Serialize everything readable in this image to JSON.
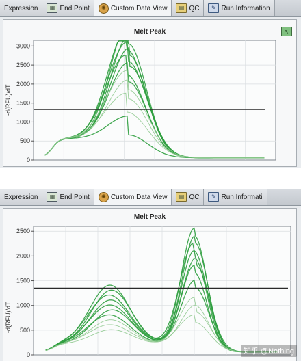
{
  "tabs_top": [
    {
      "label": "Expression",
      "icon": ""
    },
    {
      "label": "End Point",
      "icon": "endpoint-icon"
    },
    {
      "label": "Custom Data View",
      "icon": "gear-icon"
    },
    {
      "label": "QC",
      "icon": "qc-icon"
    },
    {
      "label": "Run Information",
      "icon": "run-info-icon"
    }
  ],
  "tabs_bottom": [
    {
      "label": "Expression",
      "icon": ""
    },
    {
      "label": "End Point",
      "icon": "endpoint-icon"
    },
    {
      "label": "Custom Data View",
      "icon": "gear-icon"
    },
    {
      "label": "QC",
      "icon": "qc-icon"
    },
    {
      "label": "Run Informati",
      "icon": "run-info-icon"
    }
  ],
  "watermark": "知乎 @Nothing",
  "colors": {
    "curve": "#2f9e3f",
    "curve_light": "#8fc98f",
    "threshold": "#2a2a2a"
  },
  "chart_data": [
    {
      "type": "line",
      "title": "Melt Peak",
      "ylabel": "-d(RFU)/dT",
      "yticks": [
        0,
        500,
        1000,
        1500,
        2000,
        2500,
        3000
      ],
      "ylim": [
        0,
        3150
      ],
      "xlim": [
        64,
        96
      ],
      "threshold": 1330,
      "grid": true,
      "peaks": [
        {
          "a1": 600,
          "p1": 76.5,
          "w1": 2.6,
          "a2": 0,
          "p2": 0,
          "w2": 1
        },
        {
          "a1": 3000,
          "p1": 76.5,
          "w1": 2.4,
          "a2": 0,
          "p2": 0,
          "w2": 1
        },
        {
          "a1": 2850,
          "p1": 76.3,
          "w1": 2.5,
          "a2": 0,
          "p2": 0,
          "w2": 1
        },
        {
          "a1": 2700,
          "p1": 76.6,
          "w1": 2.4,
          "a2": 0,
          "p2": 0,
          "w2": 1
        },
        {
          "a1": 2550,
          "p1": 76.4,
          "w1": 2.6,
          "a2": 0,
          "p2": 0,
          "w2": 1
        },
        {
          "a1": 2400,
          "p1": 76.7,
          "w1": 2.5,
          "a2": 0,
          "p2": 0,
          "w2": 1
        },
        {
          "a1": 2200,
          "p1": 76.2,
          "w1": 2.6,
          "a2": 0,
          "p2": 0,
          "w2": 1
        },
        {
          "a1": 2000,
          "p1": 76.5,
          "w1": 2.5,
          "a2": 0,
          "p2": 0,
          "w2": 1
        },
        {
          "a1": 1800,
          "p1": 76.4,
          "w1": 2.7,
          "a2": 0,
          "p2": 0,
          "w2": 1
        },
        {
          "a1": 1550,
          "p1": 76.5,
          "w1": 2.6,
          "a2": 0,
          "p2": 0,
          "w2": 1
        },
        {
          "a1": 1200,
          "p1": 76.3,
          "w1": 2.8,
          "a2": 0,
          "p2": 0,
          "w2": 1
        }
      ]
    },
    {
      "type": "line",
      "title": "Melt Peak",
      "ylabel": "-d(RFU)/dT",
      "yticks": [
        0,
        500,
        1000,
        1500,
        2000,
        2500
      ],
      "ylim": [
        0,
        2600
      ],
      "xlim": [
        64,
        96
      ],
      "threshold": 1350,
      "grid": true,
      "peaks": [
        {
          "a1": 1200,
          "p1": 73.5,
          "w1": 2.5,
          "a2": 2350,
          "p2": 84.0,
          "w2": 1.6
        },
        {
          "a1": 1100,
          "p1": 73.7,
          "w1": 2.5,
          "a2": 2200,
          "p2": 84.1,
          "w2": 1.6
        },
        {
          "a1": 1000,
          "p1": 73.4,
          "w1": 2.6,
          "a2": 2050,
          "p2": 83.9,
          "w2": 1.7
        },
        {
          "a1": 900,
          "p1": 73.6,
          "w1": 2.5,
          "a2": 1900,
          "p2": 84.0,
          "w2": 1.6
        },
        {
          "a1": 800,
          "p1": 73.5,
          "w1": 2.6,
          "a2": 1750,
          "p2": 84.2,
          "w2": 1.7
        },
        {
          "a1": 700,
          "p1": 73.8,
          "w1": 2.5,
          "a2": 1600,
          "p2": 84.0,
          "w2": 1.6
        },
        {
          "a1": 600,
          "p1": 73.4,
          "w1": 2.6,
          "a2": 1300,
          "p2": 84.1,
          "w2": 1.7
        },
        {
          "a1": 500,
          "p1": 73.6,
          "w1": 2.5,
          "a2": 950,
          "p2": 84.0,
          "w2": 1.8
        },
        {
          "a1": 400,
          "p1": 73.5,
          "w1": 2.6,
          "a2": 800,
          "p2": 84.2,
          "w2": 1.8
        },
        {
          "a1": 300,
          "p1": 73.7,
          "w1": 2.5,
          "a2": 600,
          "p2": 84.0,
          "w2": 1.9
        }
      ]
    }
  ]
}
